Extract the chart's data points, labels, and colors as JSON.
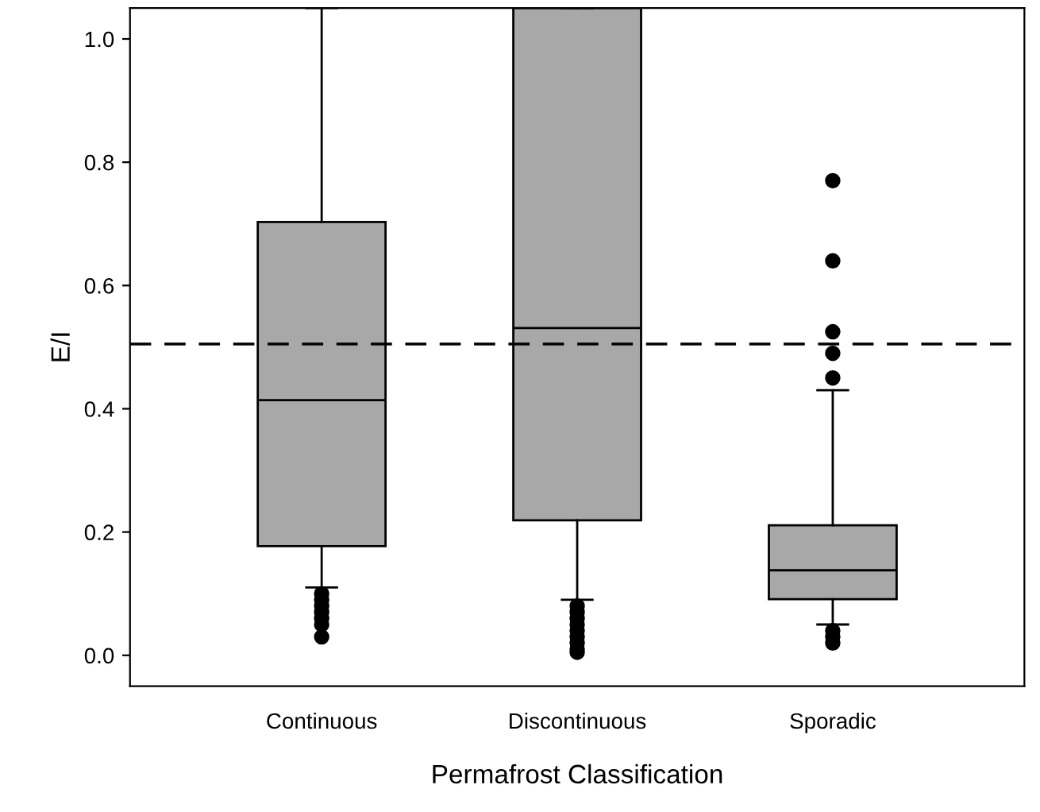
{
  "chart_data": {
    "type": "box",
    "xlabel": "Permafrost Classification",
    "ylabel": "E/I",
    "categories": [
      "Continuous",
      "Discontinuous",
      "Sporadic"
    ],
    "color": "#a8a8a8",
    "boxes": [
      {
        "low": 0.11,
        "q1": 0.177,
        "median": 0.414,
        "q3": 0.703,
        "high": 1.05,
        "outliers": [
          0.03,
          0.05,
          0.06,
          0.07,
          0.08,
          0.09,
          0.1
        ]
      },
      {
        "low": 0.09,
        "q1": 0.219,
        "median": 0.531,
        "q3": 1.05,
        "high": 1.05,
        "outliers": [
          0.005,
          0.01,
          0.02,
          0.03,
          0.04,
          0.05,
          0.06,
          0.07,
          0.08
        ]
      },
      {
        "low": 0.05,
        "q1": 0.091,
        "median": 0.138,
        "q3": 0.211,
        "high": 0.43,
        "outliers": [
          0.02,
          0.03,
          0.04,
          0.45,
          0.49,
          0.525,
          0.64,
          0.77
        ]
      }
    ],
    "ylim": [
      -0.05,
      1.05
    ],
    "yticks": [
      {
        "value": 0,
        "label": "0.0"
      },
      {
        "value": 0.2,
        "label": "0.2"
      },
      {
        "value": 0.4,
        "label": "0.4"
      },
      {
        "value": 0.6,
        "label": "0.6"
      },
      {
        "value": 0.8,
        "label": "0.8"
      },
      {
        "value": 1,
        "label": "1.0"
      }
    ],
    "ref_lines": [
      {
        "axis": "y",
        "value": 0.505,
        "line_style": "dashed",
        "color": "#000000"
      }
    ],
    "grid": false
  }
}
